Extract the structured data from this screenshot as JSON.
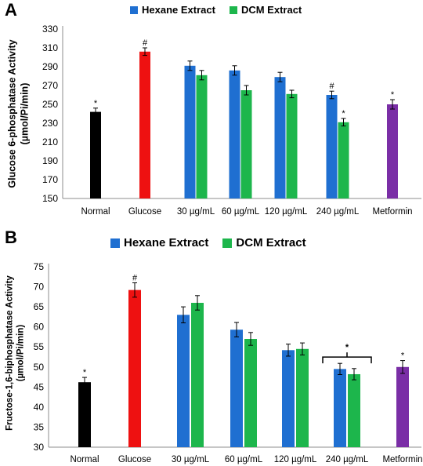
{
  "colors": {
    "normal": "#000000",
    "glucose": "#ee1111",
    "hexane": "#1f6fd1",
    "dcm": "#1db64c",
    "metformin": "#7a2ea6"
  },
  "chart_data": [
    {
      "panel_label": "A",
      "type": "bar",
      "ylabel_line1": "Glucose 6-phosphatase Activity",
      "ylabel_line2": "(µmol/Pi/min)",
      "ylim": [
        150,
        330
      ],
      "yticks": [
        "150",
        "170",
        "190",
        "210",
        "230",
        "250",
        "270",
        "290",
        "310",
        "330"
      ],
      "legend": [
        {
          "name": "Hexane Extract",
          "color_key": "hexane"
        },
        {
          "name": "DCM Extract",
          "color_key": "dcm"
        }
      ],
      "groups": [
        {
          "label": "Normal",
          "bars": [
            {
              "value": 242,
              "err": 4,
              "color_key": "normal",
              "mark": "*"
            }
          ]
        },
        {
          "label": "Glucose",
          "bars": [
            {
              "value": 306,
              "err": 4,
              "color_key": "glucose",
              "mark": "#"
            }
          ]
        },
        {
          "label": "30 µg/mL",
          "bars": [
            {
              "value": 291,
              "err": 5,
              "color_key": "hexane",
              "mark": ""
            },
            {
              "value": 281,
              "err": 5,
              "color_key": "dcm",
              "mark": ""
            }
          ]
        },
        {
          "label": "60 µg/mL",
          "bars": [
            {
              "value": 286,
              "err": 5,
              "color_key": "hexane",
              "mark": ""
            },
            {
              "value": 265,
              "err": 5,
              "color_key": "dcm",
              "mark": ""
            }
          ]
        },
        {
          "label": "120 µg/mL",
          "bars": [
            {
              "value": 279,
              "err": 5,
              "color_key": "hexane",
              "mark": ""
            },
            {
              "value": 261,
              "err": 4,
              "color_key": "dcm",
              "mark": ""
            }
          ]
        },
        {
          "label": "240 µg/mL",
          "bars": [
            {
              "value": 260,
              "err": 4,
              "color_key": "hexane",
              "mark": "#"
            },
            {
              "value": 231,
              "err": 4,
              "color_key": "dcm",
              "mark": "*"
            }
          ]
        },
        {
          "label": "Metformin",
          "bars": [
            {
              "value": 250,
              "err": 5,
              "color_key": "metformin",
              "mark": "*"
            }
          ]
        }
      ]
    },
    {
      "panel_label": "B",
      "type": "bar",
      "ylabel_line1": "Fructose-1,6-biphosphatase Activity",
      "ylabel_line2": "(µmol/Pi/min)",
      "ylim": [
        30,
        75
      ],
      "yticks": [
        "30",
        "35",
        "40",
        "45",
        "50",
        "55",
        "60",
        "65",
        "70",
        "75"
      ],
      "legend": [
        {
          "name": "Hexane Extract",
          "color_key": "hexane"
        },
        {
          "name": "DCM Extract",
          "color_key": "dcm"
        }
      ],
      "bracket_mark": "*",
      "groups": [
        {
          "label": "Normal",
          "bars": [
            {
              "value": 46.2,
              "err": 1.2,
              "color_key": "normal",
              "mark": "*"
            }
          ]
        },
        {
          "label": "Glucose",
          "bars": [
            {
              "value": 69.2,
              "err": 1.8,
              "color_key": "glucose",
              "mark": "#"
            }
          ]
        },
        {
          "label": "30 µg/mL",
          "bars": [
            {
              "value": 63.0,
              "err": 2.0,
              "color_key": "hexane",
              "mark": ""
            },
            {
              "value": 66.0,
              "err": 1.8,
              "color_key": "dcm",
              "mark": ""
            }
          ]
        },
        {
          "label": "60 µg/mL",
          "bars": [
            {
              "value": 59.3,
              "err": 1.8,
              "color_key": "hexane",
              "mark": ""
            },
            {
              "value": 57.0,
              "err": 1.6,
              "color_key": "dcm",
              "mark": ""
            }
          ]
        },
        {
          "label": "120 µg/mL",
          "bars": [
            {
              "value": 54.2,
              "err": 1.5,
              "color_key": "hexane",
              "mark": ""
            },
            {
              "value": 54.5,
              "err": 1.5,
              "color_key": "dcm",
              "mark": ""
            }
          ]
        },
        {
          "label": "240 µg/mL",
          "bars": [
            {
              "value": 49.5,
              "err": 1.4,
              "color_key": "hexane",
              "mark": ""
            },
            {
              "value": 48.2,
              "err": 1.4,
              "color_key": "dcm",
              "mark": ""
            }
          ]
        },
        {
          "label": "Metformin",
          "bars": [
            {
              "value": 50.0,
              "err": 1.6,
              "color_key": "metformin",
              "mark": "*"
            }
          ]
        }
      ]
    }
  ]
}
